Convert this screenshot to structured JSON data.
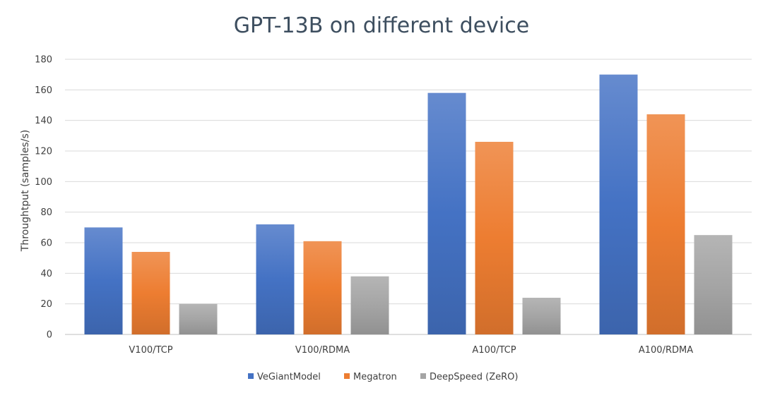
{
  "chart_data": {
    "type": "bar",
    "title": "GPT-13B on different device",
    "xlabel": "",
    "ylabel": "Throughtput (samples/s)",
    "ylim": [
      0,
      180
    ],
    "yticks": [
      0,
      20,
      40,
      60,
      80,
      100,
      120,
      140,
      160,
      180
    ],
    "grid": true,
    "legend_position": "bottom",
    "categories": [
      "V100/TCP",
      "V100/RDMA",
      "A100/TCP",
      "A100/RDMA"
    ],
    "series": [
      {
        "name": "VeGiantModel",
        "color": "#4472c4",
        "values": [
          70,
          72,
          158,
          170
        ]
      },
      {
        "name": "Megatron",
        "color": "#ed7d31",
        "values": [
          54,
          61,
          126,
          144
        ]
      },
      {
        "name": "DeepSpeed (ZeRO)",
        "color": "#a5a5a5",
        "values": [
          20,
          38,
          24,
          65
        ]
      }
    ]
  }
}
